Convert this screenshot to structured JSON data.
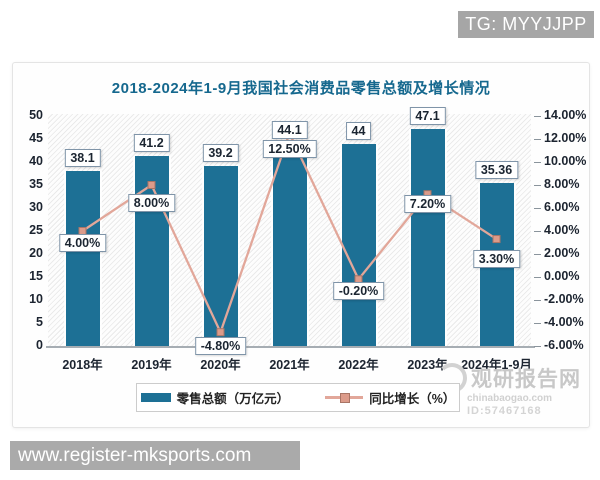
{
  "tg_badge": {
    "text": "TG: MYYJJPP"
  },
  "url_bar": {
    "text": "www.register-mksports.com"
  },
  "watermark": {
    "brand": "观研报告网",
    "site": "chinabaogao.com",
    "id": "ID:57467168"
  },
  "chart_data": {
    "type": "bar",
    "title": "2018-2024年1-9月我国社会消费品零售总额及增长情况",
    "categories": [
      "2018年",
      "2019年",
      "2020年",
      "2021年",
      "2022年",
      "2023年",
      "2024年1-9月"
    ],
    "series": [
      {
        "name": "零售总额（万亿元）",
        "kind": "bar",
        "axis": "left",
        "color": "#1d7095",
        "values": [
          38.1,
          41.2,
          39.2,
          44.1,
          44,
          47.1,
          35.36
        ],
        "labels": [
          "38.1",
          "41.2",
          "39.2",
          "44.1",
          "44",
          "47.1",
          "35.36"
        ]
      },
      {
        "name": "同比增长（%）",
        "kind": "line",
        "axis": "right",
        "color": "#e2a79a",
        "marker_color": "#dc9b8a",
        "values": [
          4.0,
          8.0,
          -4.8,
          12.5,
          -0.2,
          7.2,
          3.3
        ],
        "labels": [
          "4.00%",
          "8.00%",
          "-4.80%",
          "12.50%",
          "-0.20%",
          "7.20%",
          "3.30%"
        ]
      }
    ],
    "left_axis": {
      "min": 0,
      "max": 50,
      "tick_values": [
        0,
        5,
        10,
        15,
        20,
        25,
        30,
        35,
        40,
        45,
        50
      ],
      "tick_labels": [
        "0",
        "5",
        "10",
        "15",
        "20",
        "25",
        "30",
        "35",
        "40",
        "45",
        "50"
      ]
    },
    "right_axis": {
      "min": -6,
      "max": 14,
      "tick_values": [
        14,
        12,
        10,
        8,
        6,
        4,
        2,
        0,
        -2,
        -4,
        -6
      ],
      "tick_labels": [
        "14.00%",
        "12.00%",
        "10.00%",
        "8.00%",
        "6.00%",
        "4.00%",
        "2.00%",
        "0.00%",
        "-2.00%",
        "-4.00%",
        "-6.00%"
      ]
    },
    "legend_position": "bottom",
    "grid": false,
    "plot_background": "diagonal-hatch"
  }
}
